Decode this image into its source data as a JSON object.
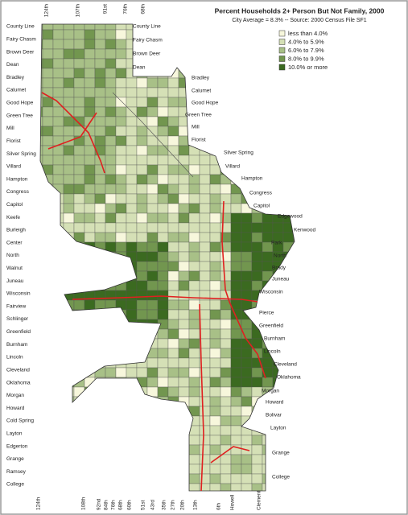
{
  "title": "Percent Households 2+ Person But Not Family, 2000",
  "subtitle": "City Average = 8.3%  --  Source: 2000 Census File SF1",
  "legend": [
    {
      "label": "less than 4.0%",
      "color": "#f7f7dc"
    },
    {
      "label": "4.0% to 5.9%",
      "color": "#d5e0b6"
    },
    {
      "label": "6.0% to 7.9%",
      "color": "#a8c087"
    },
    {
      "label": "8.0% to 9.9%",
      "color": "#72964f"
    },
    {
      "label": "10.0% or more",
      "color": "#3b6a20"
    }
  ],
  "left_streets": [
    "County Line",
    "Fairy Chasm",
    "Brown Deer",
    "Dean",
    "Bradley",
    "Calumet",
    "Good Hope",
    "Green Tree",
    "Mill",
    "Florist",
    "Silver Spring",
    "Villard",
    "Hampton",
    "Congress",
    "Capitol",
    "Keefe",
    "Burleigh",
    "Center",
    "North",
    "Walnut",
    "Juneau",
    "Wisconsin",
    "Fairview",
    "Schlinger",
    "Greenfield",
    "Burnham",
    "Lincoln",
    "Cleveland",
    "Oklahoma",
    "Morgan",
    "Howard",
    "Cold Spring",
    "Layton",
    "Edgerton",
    "Grange",
    "Ramsey",
    "College"
  ],
  "inner_streets": [
    "County Line",
    "Fairy Chasm",
    "Brown Deer",
    "Dean",
    "Bradley",
    "Calumet",
    "Good Hope",
    "Green Tree",
    "Mill",
    "Florist",
    "Silver Spring",
    "Villard",
    "Hampton",
    "Congress",
    "Capitol",
    "Edgewood",
    "Kenwood",
    "Park",
    "North",
    "Brady",
    "Juneau",
    "Wisconsin",
    "Pierce",
    "Greenfield",
    "Burnham",
    "Lincoln",
    "Cleveland",
    "Oklahoma",
    "Morgan",
    "Howard",
    "Bolivar",
    "Layton",
    "Grange",
    "College"
  ],
  "top_streets": [
    "124th",
    "107th",
    "91st",
    "76th",
    "68th"
  ],
  "bottom_streets": [
    "124th",
    "108th",
    "92nd",
    "84th",
    "76th",
    "68th",
    "60th",
    "51st",
    "43rd",
    "35th",
    "27th",
    "20th",
    "13th",
    "6th",
    "Howell",
    "Clement"
  ]
}
